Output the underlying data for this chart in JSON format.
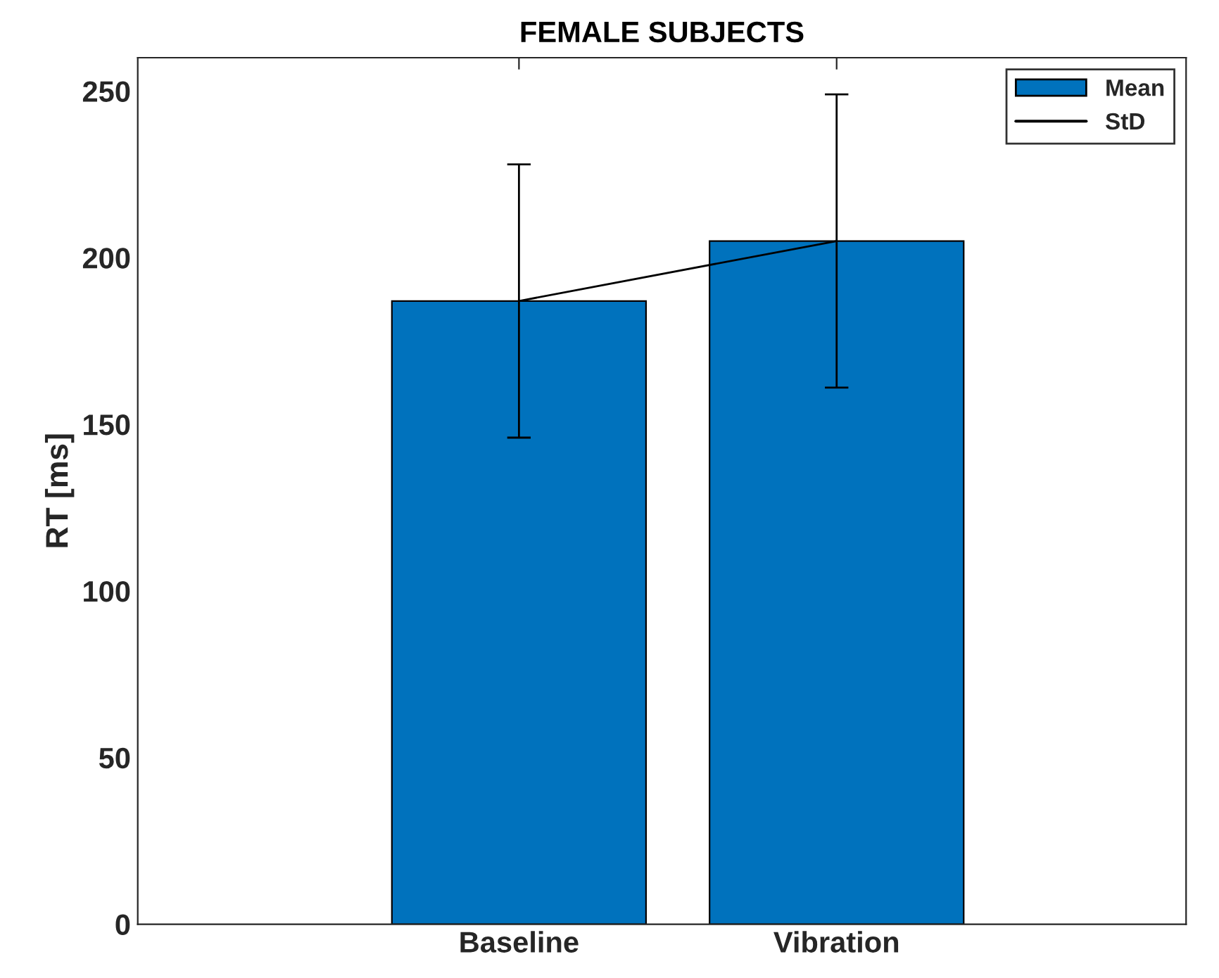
{
  "chart_data": {
    "type": "bar",
    "title": "FEMALE SUBJECTS",
    "ylabel": "RT [ms]",
    "categories": [
      "Baseline",
      "Vibration"
    ],
    "series": [
      {
        "name": "Mean",
        "type": "bar",
        "color": "#0072bd",
        "values": [
          187,
          205
        ]
      },
      {
        "name": "StD",
        "type": "line",
        "color": "#000000",
        "values": [
          187,
          205
        ],
        "errors": [
          41,
          44
        ]
      }
    ],
    "ylim": [
      0,
      260
    ],
    "yticks": [
      0,
      50,
      100,
      150,
      200,
      250
    ],
    "grid": false,
    "legend": "top right",
    "marker": "none",
    "line_style": "solid"
  }
}
